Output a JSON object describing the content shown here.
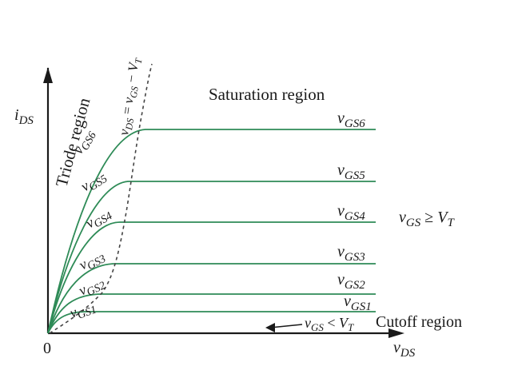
{
  "diagram": {
    "axes": {
      "y_label": {
        "main": "i",
        "sub": "DS"
      },
      "x_label": {
        "main": "v",
        "sub": "DS"
      },
      "origin": "0"
    },
    "regions": {
      "triode": "Triode  region",
      "saturation": "Saturation region",
      "cutoff": "Cutoff  region"
    },
    "boundary_equation": {
      "v": "v",
      "ds": "DS",
      "eq": " = ",
      "v2": "v",
      "gs": "GS",
      "minus": " − ",
      "V": "V",
      "t": "T"
    },
    "conditions": {
      "on": {
        "v": "v",
        "gs": "GS",
        "op": " ≥ ",
        "V": "V",
        "t": "T"
      },
      "off": {
        "v": "v",
        "gs": "GS",
        "op": " < ",
        "V": "V",
        "t": "T"
      }
    },
    "curves": [
      {
        "main": "v",
        "sub": "GS1"
      },
      {
        "main": "v",
        "sub": "GS2"
      },
      {
        "main": "v",
        "sub": "GS3"
      },
      {
        "main": "v",
        "sub": "GS4"
      },
      {
        "main": "v",
        "sub": "GS5"
      },
      {
        "main": "v",
        "sub": "GS6"
      }
    ],
    "colors": {
      "curve": "#2e8b57",
      "axis": "#1a1a1a",
      "boundary": "#444444"
    }
  }
}
